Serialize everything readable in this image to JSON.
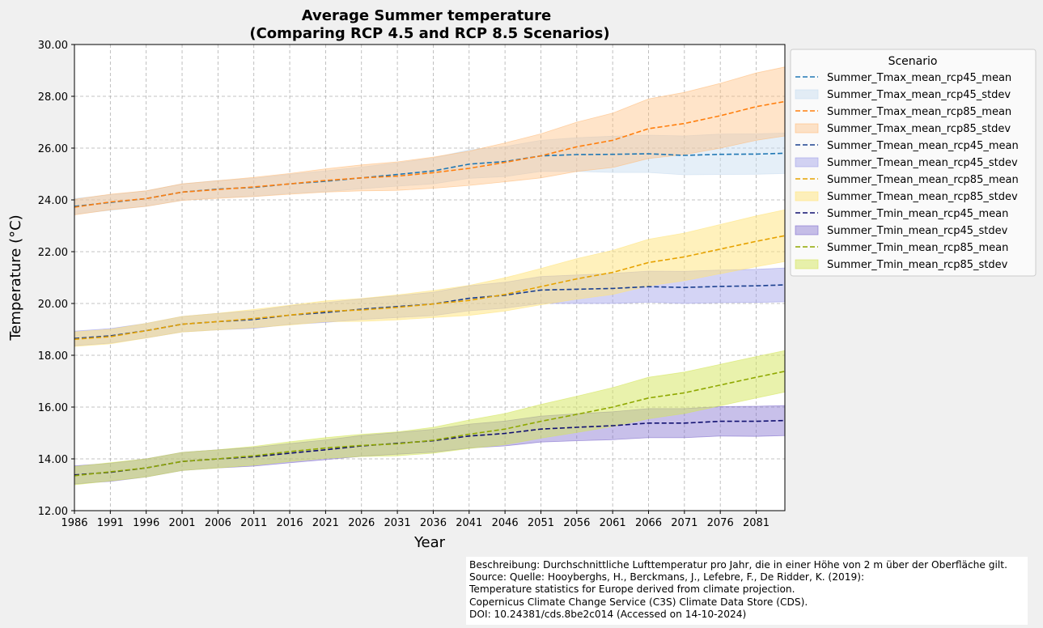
{
  "chart_data": {
    "type": "line",
    "title": "Average Summer temperature",
    "subtitle": "(Comparing RCP 4.5 and RCP 8.5 Scenarios)",
    "xlabel": "Year",
    "ylabel": "Temperature (°C)",
    "xlim": [
      1986,
      2085
    ],
    "ylim": [
      12,
      30
    ],
    "x_ticks": [
      "1986",
      "1991",
      "1996",
      "2001",
      "2006",
      "2011",
      "2016",
      "2021",
      "2026",
      "2031",
      "2036",
      "2041",
      "2046",
      "2051",
      "2056",
      "2061",
      "2066",
      "2071",
      "2076",
      "2081"
    ],
    "y_ticks": [
      "12.00",
      "14.00",
      "16.00",
      "18.00",
      "20.00",
      "22.00",
      "24.00",
      "26.00",
      "28.00",
      "30.00"
    ],
    "grid": true,
    "legend_title": "Scenario",
    "legend_position": "outside-right",
    "x": [
      1986,
      1991,
      1996,
      2001,
      2006,
      2011,
      2016,
      2021,
      2026,
      2031,
      2036,
      2041,
      2046,
      2051,
      2056,
      2061,
      2066,
      2071,
      2076,
      2081,
      2085
    ],
    "series": [
      {
        "name": "Summer_Tmax_mean_rcp45_mean",
        "color": "#1f77b4",
        "stdev_name": "Summer_Tmax_mean_rcp45_stdev",
        "fill": "#c6dbef",
        "fill_opacity": 0.45,
        "values": [
          23.75,
          23.9,
          24.05,
          24.3,
          24.42,
          24.48,
          24.62,
          24.72,
          24.85,
          24.98,
          25.12,
          25.38,
          25.48,
          25.7,
          25.75,
          25.76,
          25.78,
          25.72,
          25.76,
          25.77,
          25.8
        ],
        "stdev": [
          0.3,
          0.3,
          0.3,
          0.32,
          0.33,
          0.35,
          0.37,
          0.4,
          0.42,
          0.45,
          0.5,
          0.55,
          0.58,
          0.6,
          0.65,
          0.7,
          0.72,
          0.75,
          0.78,
          0.78,
          0.78
        ]
      },
      {
        "name": "Summer_Tmax_mean_rcp85_mean",
        "color": "#ff7f0e",
        "stdev_name": "Summer_Tmax_mean_rcp85_stdev",
        "fill": "#ffbb78",
        "fill_opacity": 0.4,
        "values": [
          23.72,
          23.92,
          24.05,
          24.3,
          24.4,
          24.5,
          24.62,
          24.75,
          24.85,
          24.92,
          25.05,
          25.22,
          25.45,
          25.7,
          26.05,
          26.3,
          26.75,
          26.95,
          27.25,
          27.6,
          27.8
        ],
        "stdev": [
          0.3,
          0.3,
          0.3,
          0.32,
          0.34,
          0.37,
          0.4,
          0.45,
          0.5,
          0.55,
          0.6,
          0.66,
          0.75,
          0.85,
          0.95,
          1.05,
          1.15,
          1.2,
          1.25,
          1.3,
          1.33
        ]
      },
      {
        "name": "Summer_Tmean_mean_rcp45_mean",
        "color": "#1a3f8f",
        "stdev_name": "Summer_Tmean_mean_rcp45_stdev",
        "fill": "#9f9fe8",
        "fill_opacity": 0.45,
        "values": [
          18.65,
          18.75,
          18.95,
          19.2,
          19.3,
          19.38,
          19.55,
          19.65,
          19.78,
          19.88,
          19.98,
          20.2,
          20.32,
          20.52,
          20.55,
          20.58,
          20.65,
          20.62,
          20.66,
          20.68,
          20.72
        ],
        "stdev": [
          0.28,
          0.28,
          0.28,
          0.3,
          0.32,
          0.34,
          0.36,
          0.38,
          0.4,
          0.42,
          0.45,
          0.48,
          0.5,
          0.52,
          0.55,
          0.58,
          0.6,
          0.62,
          0.63,
          0.64,
          0.65
        ]
      },
      {
        "name": "Summer_Tmean_mean_rcp85_mean",
        "color": "#e6a200",
        "stdev_name": "Summer_Tmean_mean_rcp85_stdev",
        "fill": "#ffe47a",
        "fill_opacity": 0.5,
        "values": [
          18.62,
          18.72,
          18.95,
          19.2,
          19.3,
          19.42,
          19.55,
          19.7,
          19.75,
          19.85,
          19.98,
          20.12,
          20.35,
          20.65,
          20.95,
          21.2,
          21.58,
          21.8,
          22.1,
          22.4,
          22.62
        ],
        "stdev": [
          0.28,
          0.28,
          0.28,
          0.3,
          0.32,
          0.35,
          0.38,
          0.4,
          0.44,
          0.48,
          0.52,
          0.58,
          0.64,
          0.7,
          0.78,
          0.85,
          0.9,
          0.92,
          0.95,
          0.98,
          1.0
        ]
      },
      {
        "name": "Summer_Tmin_mean_rcp45_mean",
        "color": "#101070",
        "stdev_name": "Summer_Tmin_mean_rcp45_stdev",
        "fill": "#7b68cc",
        "fill_opacity": 0.42,
        "values": [
          13.38,
          13.48,
          13.65,
          13.9,
          14.0,
          14.08,
          14.22,
          14.35,
          14.5,
          14.6,
          14.7,
          14.88,
          14.98,
          15.15,
          15.22,
          15.28,
          15.38,
          15.38,
          15.45,
          15.45,
          15.48
        ],
        "stdev": [
          0.35,
          0.35,
          0.35,
          0.35,
          0.35,
          0.36,
          0.37,
          0.38,
          0.4,
          0.42,
          0.44,
          0.46,
          0.48,
          0.5,
          0.52,
          0.54,
          0.56,
          0.56,
          0.57,
          0.58,
          0.58
        ]
      },
      {
        "name": "Summer_Tmin_mean_rcp85_mean",
        "color": "#8fa800",
        "stdev_name": "Summer_Tmin_mean_rcp85_stdev",
        "fill": "#d4e65a",
        "fill_opacity": 0.5,
        "values": [
          13.35,
          13.5,
          13.65,
          13.9,
          14.0,
          14.12,
          14.28,
          14.42,
          14.52,
          14.58,
          14.72,
          14.95,
          15.15,
          15.45,
          15.72,
          16.0,
          16.35,
          16.55,
          16.85,
          17.15,
          17.38
        ],
        "stdev": [
          0.35,
          0.35,
          0.35,
          0.35,
          0.35,
          0.36,
          0.38,
          0.4,
          0.43,
          0.46,
          0.5,
          0.55,
          0.6,
          0.65,
          0.7,
          0.75,
          0.8,
          0.8,
          0.8,
          0.8,
          0.8
        ]
      }
    ]
  },
  "source_box": {
    "line1": "Beschreibung: Durchschnittliche Lufttemperatur pro Jahr, die in einer Höhe von 2 m über der Oberfläche gilt.",
    "line2": "Source: Quelle: Hooyberghs, H., Berckmans, J., Lefebre, F., De Ridder, K. (2019):",
    "line3": "Temperature statistics for Europe derived from climate projection.",
    "line4": "Copernicus Climate Change Service (C3S) Climate Data Store (CDS).",
    "line5": "DOI: 10.24381/cds.8be2c014 (Accessed on 14-10-2024)"
  }
}
